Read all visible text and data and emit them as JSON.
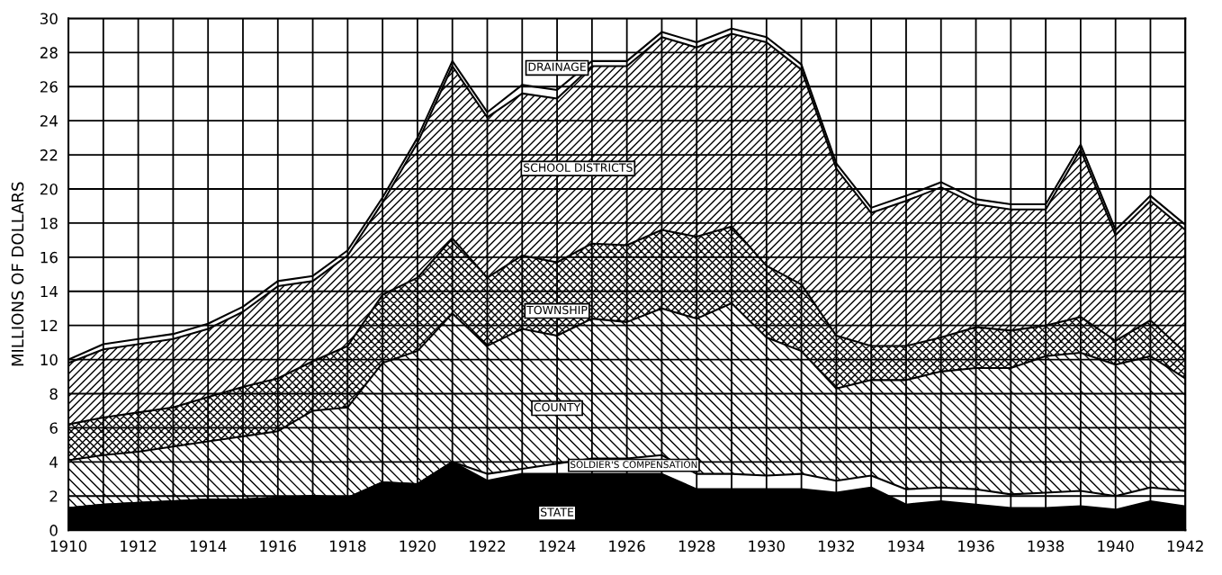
{
  "chart_data": {
    "type": "area",
    "stacked": true,
    "ylabel": "MILLIONS OF DOLLARS",
    "x": [
      1910,
      1911,
      1912,
      1913,
      1914,
      1915,
      1916,
      1917,
      1918,
      1919,
      1920,
      1921,
      1922,
      1923,
      1924,
      1925,
      1926,
      1927,
      1928,
      1929,
      1930,
      1931,
      1932,
      1933,
      1934,
      1935,
      1936,
      1937,
      1938,
      1939,
      1940,
      1941,
      1942
    ],
    "series": [
      {
        "name": "STATE",
        "color": "#000000",
        "values": [
          1.3,
          1.5,
          1.6,
          1.7,
          1.8,
          1.8,
          1.9,
          2.0,
          1.9,
          2.8,
          2.7,
          4.0,
          2.9,
          3.3,
          3.3,
          3.3,
          3.3,
          3.3,
          2.4,
          2.4,
          2.4,
          2.4,
          2.2,
          2.5,
          1.5,
          1.7,
          1.5,
          1.3,
          1.3,
          1.4,
          1.2,
          1.7,
          1.4
        ]
      },
      {
        "name": "SOLDIER'S COMPENSATION",
        "color": "#ffffff",
        "values": [
          0,
          0,
          0,
          0,
          0,
          0,
          0,
          0,
          0,
          0,
          0,
          0,
          0.4,
          0.3,
          0.6,
          0.9,
          0.9,
          1.1,
          0.9,
          0.9,
          0.8,
          0.9,
          0.7,
          0.7,
          0.9,
          0.8,
          0.9,
          0.8,
          0.9,
          0.9,
          0.8,
          0.8,
          0.9
        ]
      },
      {
        "name": "COUNTY",
        "color": "#ffffff",
        "values": [
          2.8,
          2.9,
          3.0,
          3.2,
          3.4,
          3.7,
          3.9,
          5.0,
          5.3,
          7.0,
          7.8,
          8.7,
          7.5,
          8.2,
          7.5,
          8.2,
          8.0,
          8.6,
          9.1,
          10.0,
          8.1,
          7.2,
          5.4,
          5.6,
          6.4,
          6.8,
          7.1,
          7.4,
          8.0,
          8.1,
          7.7,
          7.7,
          6.6
        ]
      },
      {
        "name": "TOWNSHIP",
        "color": "#ffffff",
        "values": [
          2.1,
          2.2,
          2.3,
          2.3,
          2.6,
          2.9,
          3.1,
          2.9,
          3.6,
          4.0,
          4.3,
          4.4,
          4.0,
          4.3,
          4.3,
          4.4,
          4.5,
          4.6,
          4.8,
          4.5,
          4.2,
          3.9,
          3.1,
          2.0,
          2.0,
          2.0,
          2.4,
          2.2,
          1.8,
          2.1,
          1.4,
          2.1,
          1.5
        ]
      },
      {
        "name": "SCHOOL DISTRICTS",
        "color": "#ffffff",
        "values": [
          3.6,
          4.0,
          4.0,
          4.0,
          4.0,
          4.4,
          5.4,
          4.7,
          5.3,
          5.4,
          7.9,
          10.1,
          9.4,
          9.5,
          9.6,
          10.4,
          10.5,
          11.3,
          11.1,
          11.3,
          13.1,
          12.6,
          9.8,
          7.8,
          8.5,
          8.8,
          7.2,
          7.1,
          6.8,
          9.8,
          6.2,
          7.0,
          7.2
        ]
      },
      {
        "name": "DRAINAGE",
        "color": "#ffffff",
        "values": [
          0.2,
          0.3,
          0.3,
          0.3,
          0.3,
          0.3,
          0.3,
          0.3,
          0.3,
          0.3,
          0.3,
          0.3,
          0.3,
          0.5,
          0.5,
          0.3,
          0.3,
          0.3,
          0.3,
          0.3,
          0.3,
          0.3,
          0.3,
          0.3,
          0.3,
          0.3,
          0.3,
          0.3,
          0.3,
          0.3,
          0.3,
          0.3,
          0.3
        ]
      }
    ],
    "xlim": [
      1910,
      1942
    ],
    "xticks": [
      1910,
      {
        "value": 1911,
        "label": null
      },
      1912,
      {
        "value": 1913,
        "label": null
      },
      1914,
      {
        "value": 1915,
        "label": null
      },
      1916,
      {
        "value": 1917,
        "label": null
      },
      1918,
      {
        "value": 1919,
        "label": null
      },
      1920,
      {
        "value": 1921,
        "label": null
      },
      1922,
      {
        "value": 1923,
        "label": null
      },
      1924,
      {
        "value": 1925,
        "label": null
      },
      1926,
      {
        "value": 1927,
        "label": null
      },
      1928,
      {
        "value": 1929,
        "label": null
      },
      1930,
      {
        "value": 1931,
        "label": null
      },
      1932,
      {
        "value": 1933,
        "label": null
      },
      1934,
      {
        "value": 1935,
        "label": null
      },
      1936,
      {
        "value": 1937,
        "label": null
      },
      1938,
      {
        "value": 1939,
        "label": null
      },
      1940,
      {
        "value": 1941,
        "label": null
      },
      1942
    ],
    "ylim": [
      0,
      30
    ],
    "yticks": [
      0,
      2,
      4,
      6,
      8,
      10,
      12,
      14,
      16,
      18,
      20,
      22,
      24,
      26,
      28,
      30
    ],
    "grid": true
  }
}
